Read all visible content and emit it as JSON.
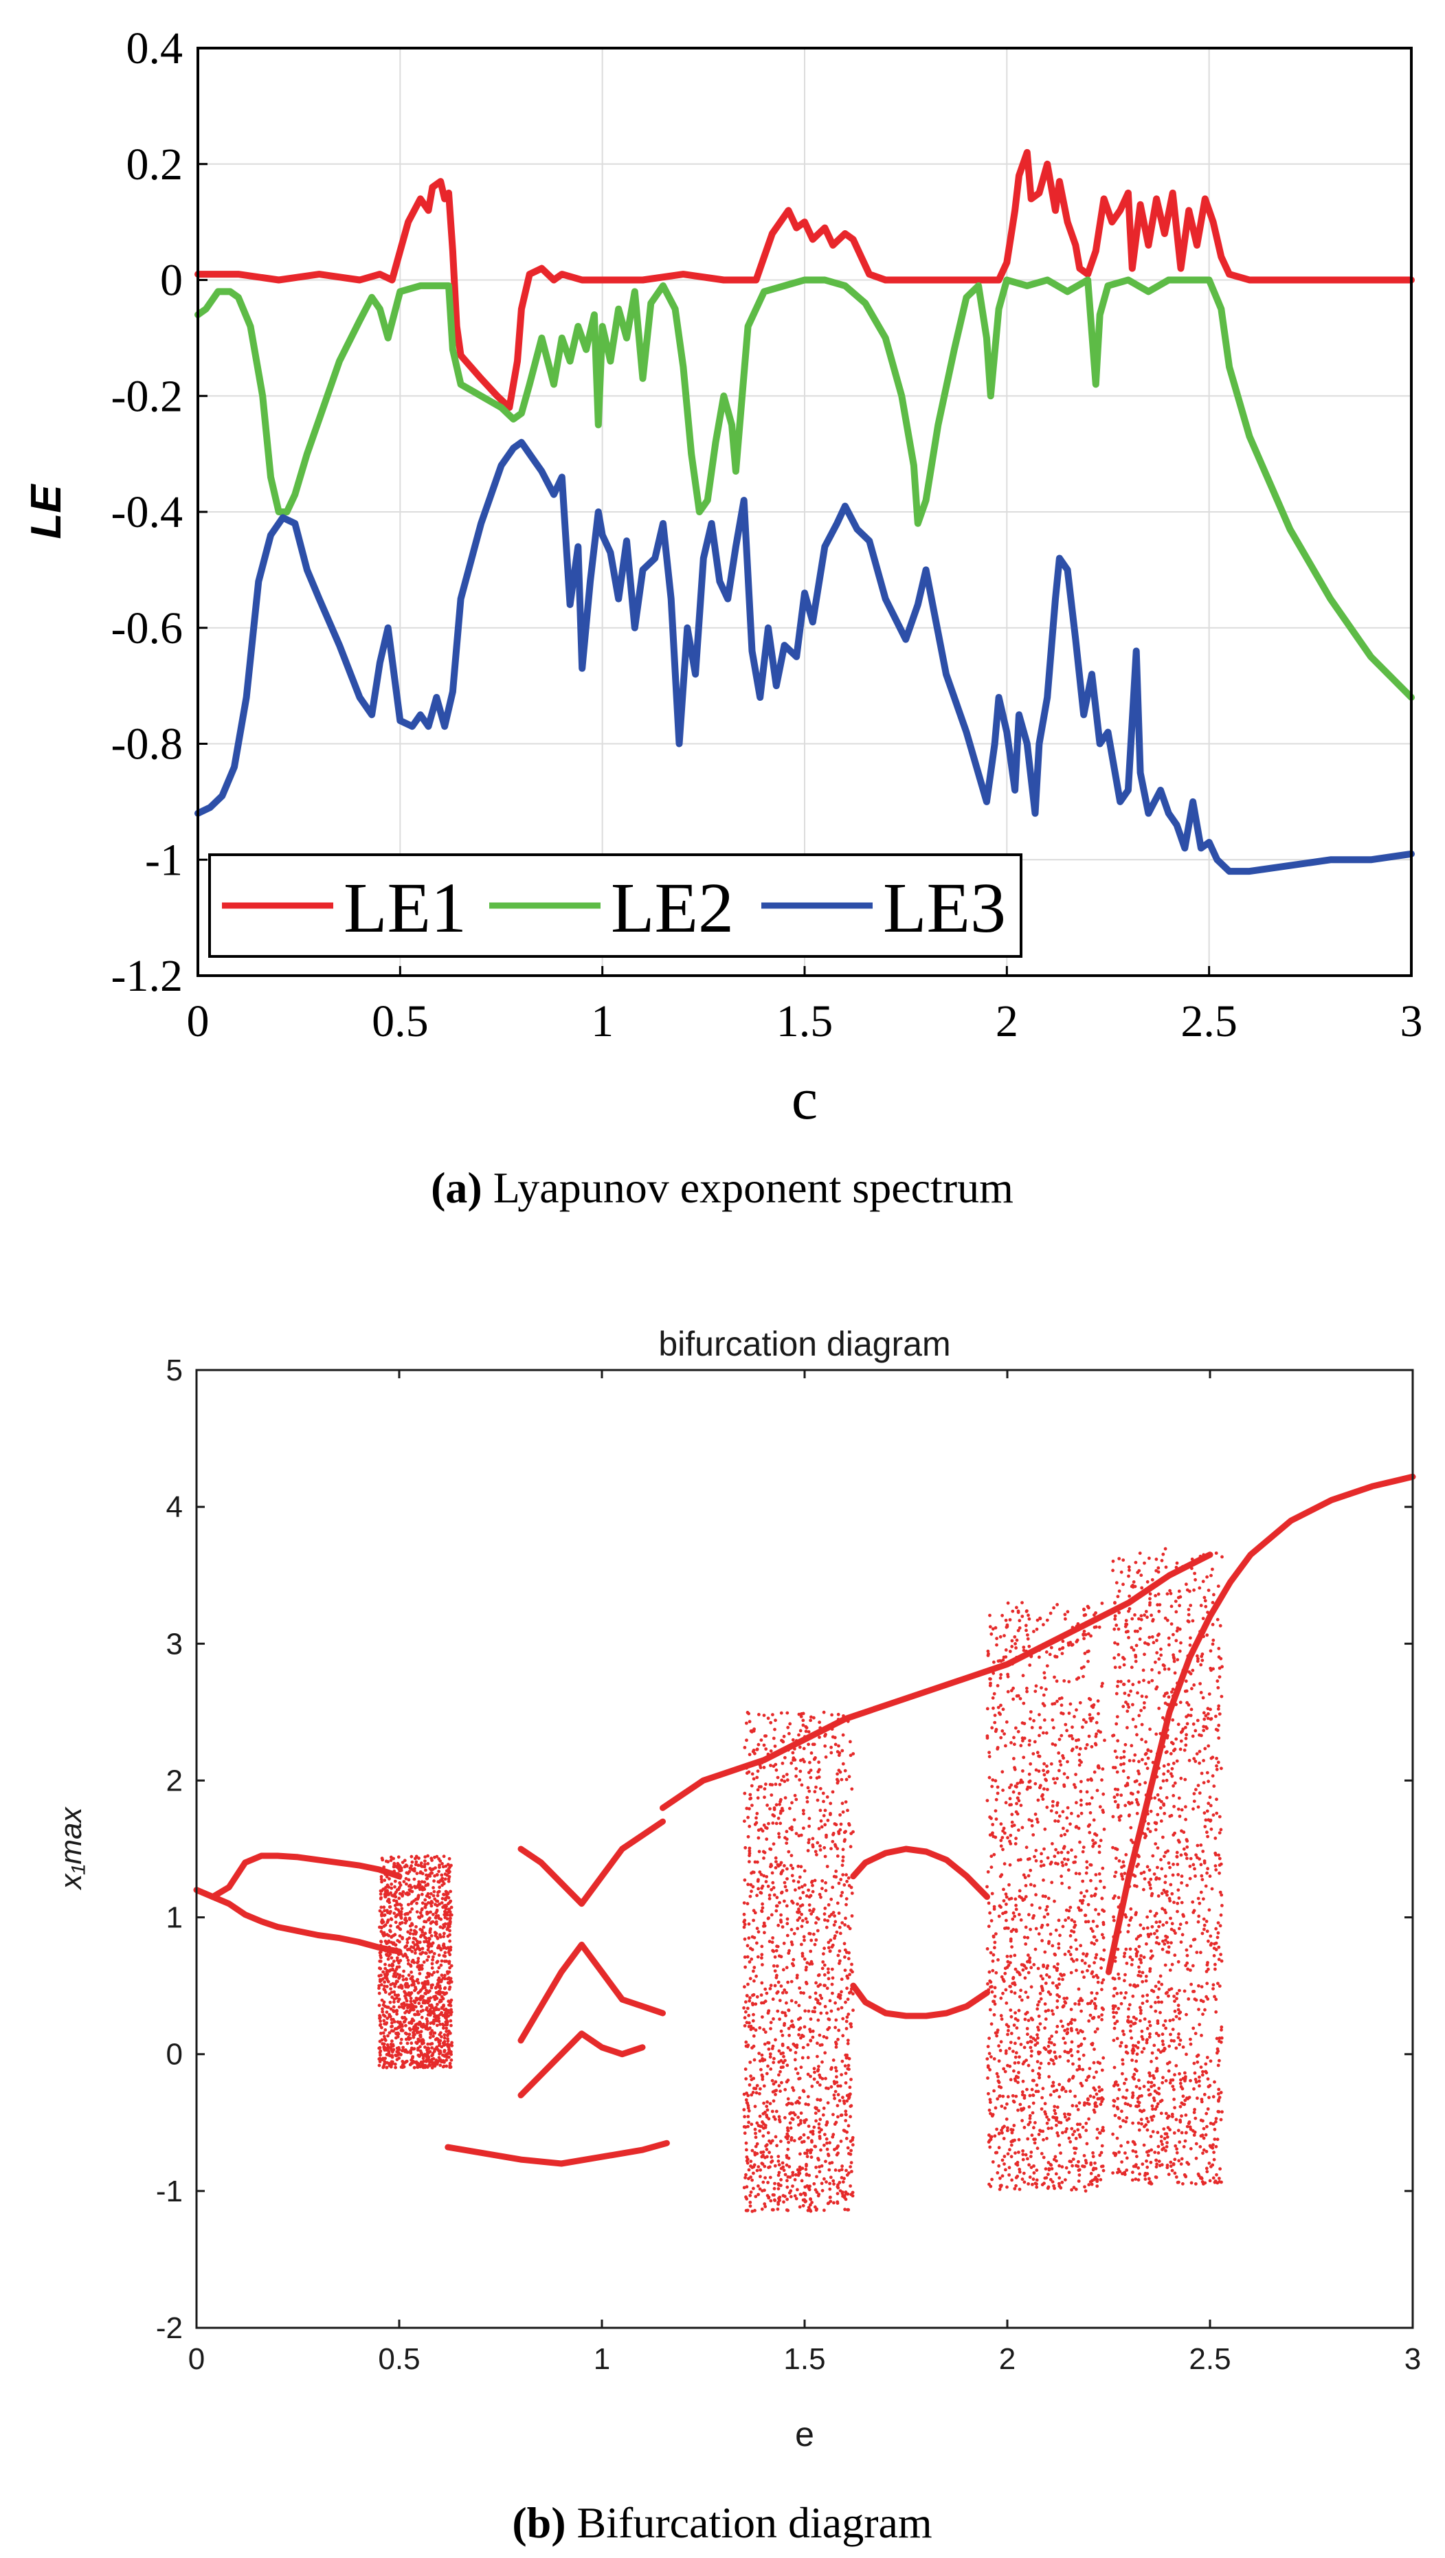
{
  "chart_data": [
    {
      "type": "line",
      "caption_label": "(a)",
      "caption_text": " Lyapunov exponent spectrum",
      "xlabel": "c",
      "ylabel": "LE",
      "xlim": [
        0,
        3
      ],
      "ylim": [
        -1.2,
        0.4
      ],
      "xticks": [
        0,
        0.5,
        1,
        1.5,
        2,
        2.5,
        3
      ],
      "xtick_labels": [
        "0",
        "0.5",
        "1",
        "1.5",
        "2",
        "2.5",
        "3"
      ],
      "yticks": [
        -1.2,
        -1,
        -0.8,
        -0.6,
        -0.4,
        -0.2,
        0,
        0.2,
        0.4
      ],
      "ytick_labels": [
        "-1.2",
        "-1",
        "-0.8",
        "-0.6",
        "-0.4",
        "-0.2",
        "0",
        "0.2",
        "0.4"
      ],
      "grid": true,
      "legend_position": "bottom-left",
      "series": [
        {
          "name": "LE1",
          "color": "#e8262b",
          "x": [
            0,
            0.1,
            0.2,
            0.3,
            0.4,
            0.45,
            0.48,
            0.5,
            0.52,
            0.55,
            0.57,
            0.58,
            0.6,
            0.61,
            0.62,
            0.63,
            0.64,
            0.65,
            0.7,
            0.74,
            0.77,
            0.79,
            0.8,
            0.82,
            0.85,
            0.88,
            0.9,
            0.95,
            1.0,
            1.1,
            1.2,
            1.3,
            1.38,
            1.4,
            1.42,
            1.44,
            1.46,
            1.48,
            1.5,
            1.52,
            1.55,
            1.57,
            1.6,
            1.62,
            1.64,
            1.66,
            1.7,
            1.8,
            1.9,
            1.95,
            1.98,
            2.0,
            2.02,
            2.03,
            2.05,
            2.06,
            2.08,
            2.1,
            2.12,
            2.13,
            2.15,
            2.17,
            2.18,
            2.2,
            2.22,
            2.24,
            2.26,
            2.28,
            2.3,
            2.31,
            2.33,
            2.35,
            2.37,
            2.39,
            2.41,
            2.43,
            2.45,
            2.47,
            2.49,
            2.51,
            2.53,
            2.55,
            2.6,
            2.7,
            2.8,
            2.9,
            3.0
          ],
          "y": [
            0.01,
            0.01,
            0.0,
            0.01,
            0.0,
            0.01,
            0.0,
            0.05,
            0.1,
            0.14,
            0.12,
            0.16,
            0.17,
            0.14,
            0.15,
            0.05,
            -0.08,
            -0.13,
            -0.17,
            -0.2,
            -0.22,
            -0.14,
            -0.05,
            0.01,
            0.02,
            0.0,
            0.01,
            0.0,
            0.0,
            0.0,
            0.01,
            0.0,
            0.0,
            0.04,
            0.08,
            0.1,
            0.12,
            0.09,
            0.1,
            0.07,
            0.09,
            0.06,
            0.08,
            0.07,
            0.04,
            0.01,
            0.0,
            0.0,
            0.0,
            0.0,
            0.0,
            0.03,
            0.12,
            0.18,
            0.22,
            0.14,
            0.15,
            0.2,
            0.12,
            0.17,
            0.1,
            0.06,
            0.02,
            0.01,
            0.05,
            0.14,
            0.1,
            0.12,
            0.15,
            0.02,
            0.13,
            0.06,
            0.14,
            0.08,
            0.15,
            0.02,
            0.12,
            0.06,
            0.14,
            0.1,
            0.04,
            0.01,
            0.0,
            0.0,
            0.0,
            0.0,
            0.0
          ]
        },
        {
          "name": "LE2",
          "color": "#5dbb46",
          "x": [
            0,
            0.02,
            0.05,
            0.08,
            0.1,
            0.13,
            0.16,
            0.18,
            0.2,
            0.22,
            0.24,
            0.27,
            0.3,
            0.35,
            0.4,
            0.43,
            0.45,
            0.47,
            0.5,
            0.55,
            0.6,
            0.62,
            0.63,
            0.65,
            0.7,
            0.75,
            0.78,
            0.8,
            0.82,
            0.85,
            0.88,
            0.9,
            0.92,
            0.94,
            0.96,
            0.98,
            0.99,
            1.0,
            1.02,
            1.04,
            1.06,
            1.08,
            1.1,
            1.12,
            1.15,
            1.18,
            1.2,
            1.22,
            1.24,
            1.26,
            1.28,
            1.3,
            1.32,
            1.33,
            1.36,
            1.4,
            1.45,
            1.5,
            1.55,
            1.6,
            1.65,
            1.7,
            1.74,
            1.77,
            1.78,
            1.8,
            1.83,
            1.87,
            1.9,
            1.93,
            1.95,
            1.96,
            1.98,
            2.0,
            2.05,
            2.1,
            2.15,
            2.2,
            2.22,
            2.23,
            2.25,
            2.3,
            2.35,
            2.4,
            2.45,
            2.5,
            2.53,
            2.55,
            2.6,
            2.7,
            2.8,
            2.9,
            3.0
          ],
          "y": [
            -0.06,
            -0.05,
            -0.02,
            -0.02,
            -0.03,
            -0.08,
            -0.2,
            -0.34,
            -0.4,
            -0.4,
            -0.37,
            -0.3,
            -0.24,
            -0.14,
            -0.07,
            -0.03,
            -0.05,
            -0.1,
            -0.02,
            -0.01,
            -0.01,
            -0.01,
            -0.12,
            -0.18,
            -0.2,
            -0.22,
            -0.24,
            -0.23,
            -0.18,
            -0.1,
            -0.18,
            -0.1,
            -0.14,
            -0.08,
            -0.12,
            -0.06,
            -0.25,
            -0.08,
            -0.14,
            -0.05,
            -0.1,
            -0.02,
            -0.17,
            -0.04,
            -0.01,
            -0.05,
            -0.15,
            -0.3,
            -0.4,
            -0.38,
            -0.28,
            -0.2,
            -0.25,
            -0.33,
            -0.08,
            -0.02,
            -0.01,
            -0.0,
            -0.0,
            -0.01,
            -0.04,
            -0.1,
            -0.2,
            -0.32,
            -0.42,
            -0.38,
            -0.25,
            -0.12,
            -0.03,
            -0.01,
            -0.1,
            -0.2,
            -0.05,
            -0.0,
            -0.01,
            -0.0,
            -0.02,
            -0.0,
            -0.18,
            -0.06,
            -0.01,
            -0.0,
            -0.02,
            -0.0,
            -0.0,
            -0.0,
            -0.05,
            -0.15,
            -0.27,
            -0.43,
            -0.55,
            -0.65,
            -0.72
          ]
        },
        {
          "name": "LE3",
          "color": "#2d4fa8",
          "x": [
            0,
            0.03,
            0.06,
            0.09,
            0.12,
            0.15,
            0.18,
            0.21,
            0.24,
            0.27,
            0.3,
            0.35,
            0.4,
            0.43,
            0.45,
            0.47,
            0.5,
            0.53,
            0.55,
            0.57,
            0.59,
            0.61,
            0.63,
            0.65,
            0.7,
            0.75,
            0.78,
            0.8,
            0.83,
            0.85,
            0.88,
            0.9,
            0.92,
            0.94,
            0.95,
            0.97,
            0.99,
            1.0,
            1.02,
            1.04,
            1.06,
            1.08,
            1.1,
            1.13,
            1.15,
            1.17,
            1.19,
            1.21,
            1.23,
            1.25,
            1.27,
            1.29,
            1.31,
            1.33,
            1.35,
            1.37,
            1.39,
            1.41,
            1.43,
            1.45,
            1.48,
            1.5,
            1.52,
            1.55,
            1.58,
            1.6,
            1.63,
            1.66,
            1.7,
            1.75,
            1.78,
            1.8,
            1.85,
            1.9,
            1.95,
            1.97,
            1.98,
            2.0,
            2.02,
            2.03,
            2.05,
            2.07,
            2.08,
            2.1,
            2.12,
            2.13,
            2.15,
            2.17,
            2.19,
            2.21,
            2.23,
            2.25,
            2.28,
            2.3,
            2.32,
            2.33,
            2.35,
            2.38,
            2.4,
            2.42,
            2.44,
            2.46,
            2.48,
            2.5,
            2.52,
            2.55,
            2.6,
            2.7,
            2.8,
            2.9,
            3.0
          ],
          "y": [
            -0.92,
            -0.91,
            -0.89,
            -0.84,
            -0.72,
            -0.52,
            -0.44,
            -0.41,
            -0.42,
            -0.5,
            -0.55,
            -0.63,
            -0.72,
            -0.75,
            -0.66,
            -0.6,
            -0.76,
            -0.77,
            -0.75,
            -0.77,
            -0.72,
            -0.77,
            -0.71,
            -0.55,
            -0.42,
            -0.32,
            -0.29,
            -0.28,
            -0.31,
            -0.33,
            -0.37,
            -0.34,
            -0.56,
            -0.46,
            -0.67,
            -0.52,
            -0.4,
            -0.44,
            -0.47,
            -0.55,
            -0.45,
            -0.6,
            -0.5,
            -0.48,
            -0.42,
            -0.55,
            -0.8,
            -0.6,
            -0.68,
            -0.48,
            -0.42,
            -0.52,
            -0.55,
            -0.46,
            -0.38,
            -0.64,
            -0.72,
            -0.6,
            -0.7,
            -0.63,
            -0.65,
            -0.54,
            -0.59,
            -0.46,
            -0.42,
            -0.39,
            -0.43,
            -0.45,
            -0.55,
            -0.62,
            -0.56,
            -0.5,
            -0.68,
            -0.78,
            -0.9,
            -0.8,
            -0.72,
            -0.78,
            -0.88,
            -0.75,
            -0.8,
            -0.92,
            -0.8,
            -0.72,
            -0.55,
            -0.48,
            -0.5,
            -0.62,
            -0.75,
            -0.68,
            -0.8,
            -0.78,
            -0.9,
            -0.88,
            -0.64,
            -0.85,
            -0.92,
            -0.88,
            -0.92,
            -0.94,
            -0.98,
            -0.9,
            -0.98,
            -0.97,
            -1.0,
            -1.02,
            -1.02,
            -1.01,
            -1.0,
            -1.0,
            -0.99
          ]
        }
      ]
    },
    {
      "type": "scatter",
      "caption_label": "(b)",
      "caption_text": " Bifurcation diagram",
      "title": "bifurcation diagram",
      "xlabel": "e",
      "ylabel": "x₁max",
      "xlim": [
        0,
        3
      ],
      "ylim": [
        -2,
        5
      ],
      "xticks": [
        0,
        0.5,
        1,
        1.5,
        2,
        2.5,
        3
      ],
      "xtick_labels": [
        "0",
        "0.5",
        "1",
        "1.5",
        "2",
        "2.5",
        "3"
      ],
      "yticks": [
        -2,
        -1,
        0,
        1,
        2,
        3,
        4,
        5
      ],
      "ytick_labels": [
        "-2",
        "-1",
        "0",
        "1",
        "2",
        "3",
        "4",
        "5"
      ],
      "grid": false,
      "color": "#e52a2a",
      "branches": [
        {
          "x": [
            0,
            0.04,
            0.08,
            0.12,
            0.16,
            0.2,
            0.25,
            0.3,
            0.35,
            0.4,
            0.45,
            0.5
          ],
          "y": [
            1.2,
            1.15,
            1.22,
            1.4,
            1.45,
            1.45,
            1.44,
            1.42,
            1.4,
            1.38,
            1.35,
            1.3
          ]
        },
        {
          "x": [
            0.04,
            0.08,
            0.12,
            0.16,
            0.2,
            0.25,
            0.3,
            0.35,
            0.4,
            0.45,
            0.5
          ],
          "y": [
            1.15,
            1.1,
            1.02,
            0.97,
            0.93,
            0.9,
            0.87,
            0.85,
            0.82,
            0.78,
            0.75
          ]
        },
        {
          "x": [
            0.62,
            0.7,
            0.8,
            0.9,
            1.0,
            1.1,
            1.16
          ],
          "y": [
            -0.68,
            -0.72,
            -0.77,
            -0.8,
            -0.75,
            -0.7,
            -0.65
          ]
        },
        {
          "x": [
            1.15,
            1.2,
            1.25,
            1.3,
            1.35,
            1.4,
            1.5,
            1.6,
            1.7,
            1.8,
            1.9,
            2.0,
            2.1,
            2.2,
            2.3,
            2.4,
            2.5
          ],
          "y": [
            1.8,
            1.9,
            2.0,
            2.05,
            2.1,
            2.15,
            2.3,
            2.45,
            2.55,
            2.65,
            2.75,
            2.85,
            3.0,
            3.15,
            3.3,
            3.5,
            3.65
          ]
        },
        {
          "x": [
            1.62,
            1.65,
            1.7,
            1.75,
            1.8,
            1.85,
            1.9,
            1.95
          ],
          "y": [
            1.3,
            1.4,
            1.47,
            1.5,
            1.48,
            1.42,
            1.3,
            1.15
          ]
        },
        {
          "x": [
            1.62,
            1.65,
            1.7,
            1.75,
            1.8,
            1.85,
            1.9,
            1.95
          ],
          "y": [
            0.5,
            0.38,
            0.3,
            0.28,
            0.28,
            0.3,
            0.35,
            0.45
          ]
        },
        {
          "x": [
            2.25,
            2.3,
            2.35,
            2.4,
            2.45,
            2.5,
            2.55,
            2.6,
            2.7,
            2.8,
            2.9,
            3.0
          ],
          "y": [
            0.6,
            1.3,
            1.9,
            2.5,
            2.9,
            3.2,
            3.45,
            3.65,
            3.9,
            4.05,
            4.15,
            4.22
          ]
        },
        {
          "x": [
            0.8,
            0.85,
            0.9,
            0.95,
            1.0,
            1.05,
            1.1,
            1.15
          ],
          "y": [
            1.5,
            1.4,
            1.25,
            1.1,
            1.3,
            1.5,
            1.6,
            1.7
          ]
        },
        {
          "x": [
            0.8,
            0.85,
            0.9,
            0.95,
            1.0,
            1.05,
            1.1,
            1.15
          ],
          "y": [
            0.1,
            0.35,
            0.6,
            0.8,
            0.6,
            0.4,
            0.35,
            0.3
          ]
        },
        {
          "x": [
            0.8,
            0.85,
            0.9,
            0.95,
            1.0,
            1.05,
            1.1
          ],
          "y": [
            -0.3,
            -0.15,
            0.0,
            0.15,
            0.05,
            0.0,
            0.05
          ]
        }
      ],
      "chaotic_bands": [
        {
          "x_range": [
            0.45,
            0.63
          ],
          "y_range": [
            -0.1,
            1.45
          ]
        },
        {
          "x_range": [
            1.35,
            1.62
          ],
          "y_range": [
            -1.15,
            2.5
          ]
        },
        {
          "x_range": [
            1.95,
            2.24
          ],
          "y_range": [
            -1.0,
            3.3
          ]
        },
        {
          "x_range": [
            2.26,
            2.53
          ],
          "y_range": [
            -0.95,
            3.7
          ]
        }
      ]
    }
  ]
}
